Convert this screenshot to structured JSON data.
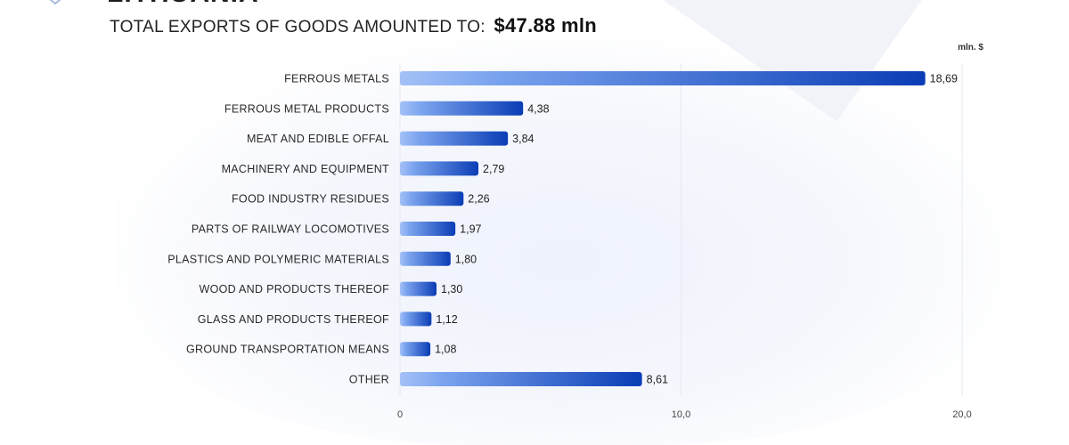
{
  "header": {
    "top_title": "LITHUANIA",
    "subtitle": "TOTAL EXPORTS OF GOODS AMOUNTED TO:",
    "total": "$47.88 mln"
  },
  "chart_data": {
    "type": "bar",
    "orientation": "horizontal",
    "unit_label": "mln. $",
    "categories": [
      "FERROUS METALS",
      "FERROUS METAL PRODUCTS",
      "MEAT AND EDIBLE OFFAL",
      "MACHINERY AND EQUIPMENT",
      "FOOD INDUSTRY RESIDUES",
      "PARTS OF RAILWAY LOCOMOTIVES",
      "PLASTICS AND POLYMERIC MATERIALS",
      "WOOD AND PRODUCTS THEREOF",
      "GLASS AND PRODUCTS THEREOF",
      "GROUND TRANSPORTATION MEANS",
      "OTHER"
    ],
    "values": [
      18.69,
      4.38,
      3.84,
      2.79,
      2.26,
      1.97,
      1.8,
      1.3,
      1.12,
      1.08,
      8.61
    ],
    "value_labels": [
      "18,69",
      "4,38",
      "3,84",
      "2,79",
      "2,26",
      "1,97",
      "1,80",
      "1,30",
      "1,12",
      "1,08",
      "8,61"
    ],
    "xlim": [
      0,
      20
    ],
    "xticks": [
      0,
      10,
      20
    ],
    "xtick_labels": [
      "0",
      "10,0",
      "20,0"
    ],
    "grid": true,
    "colors": {
      "bar_start": "#a4c1f7",
      "bar_end": "#0a3db5",
      "grid": "#e6e9f0"
    }
  }
}
